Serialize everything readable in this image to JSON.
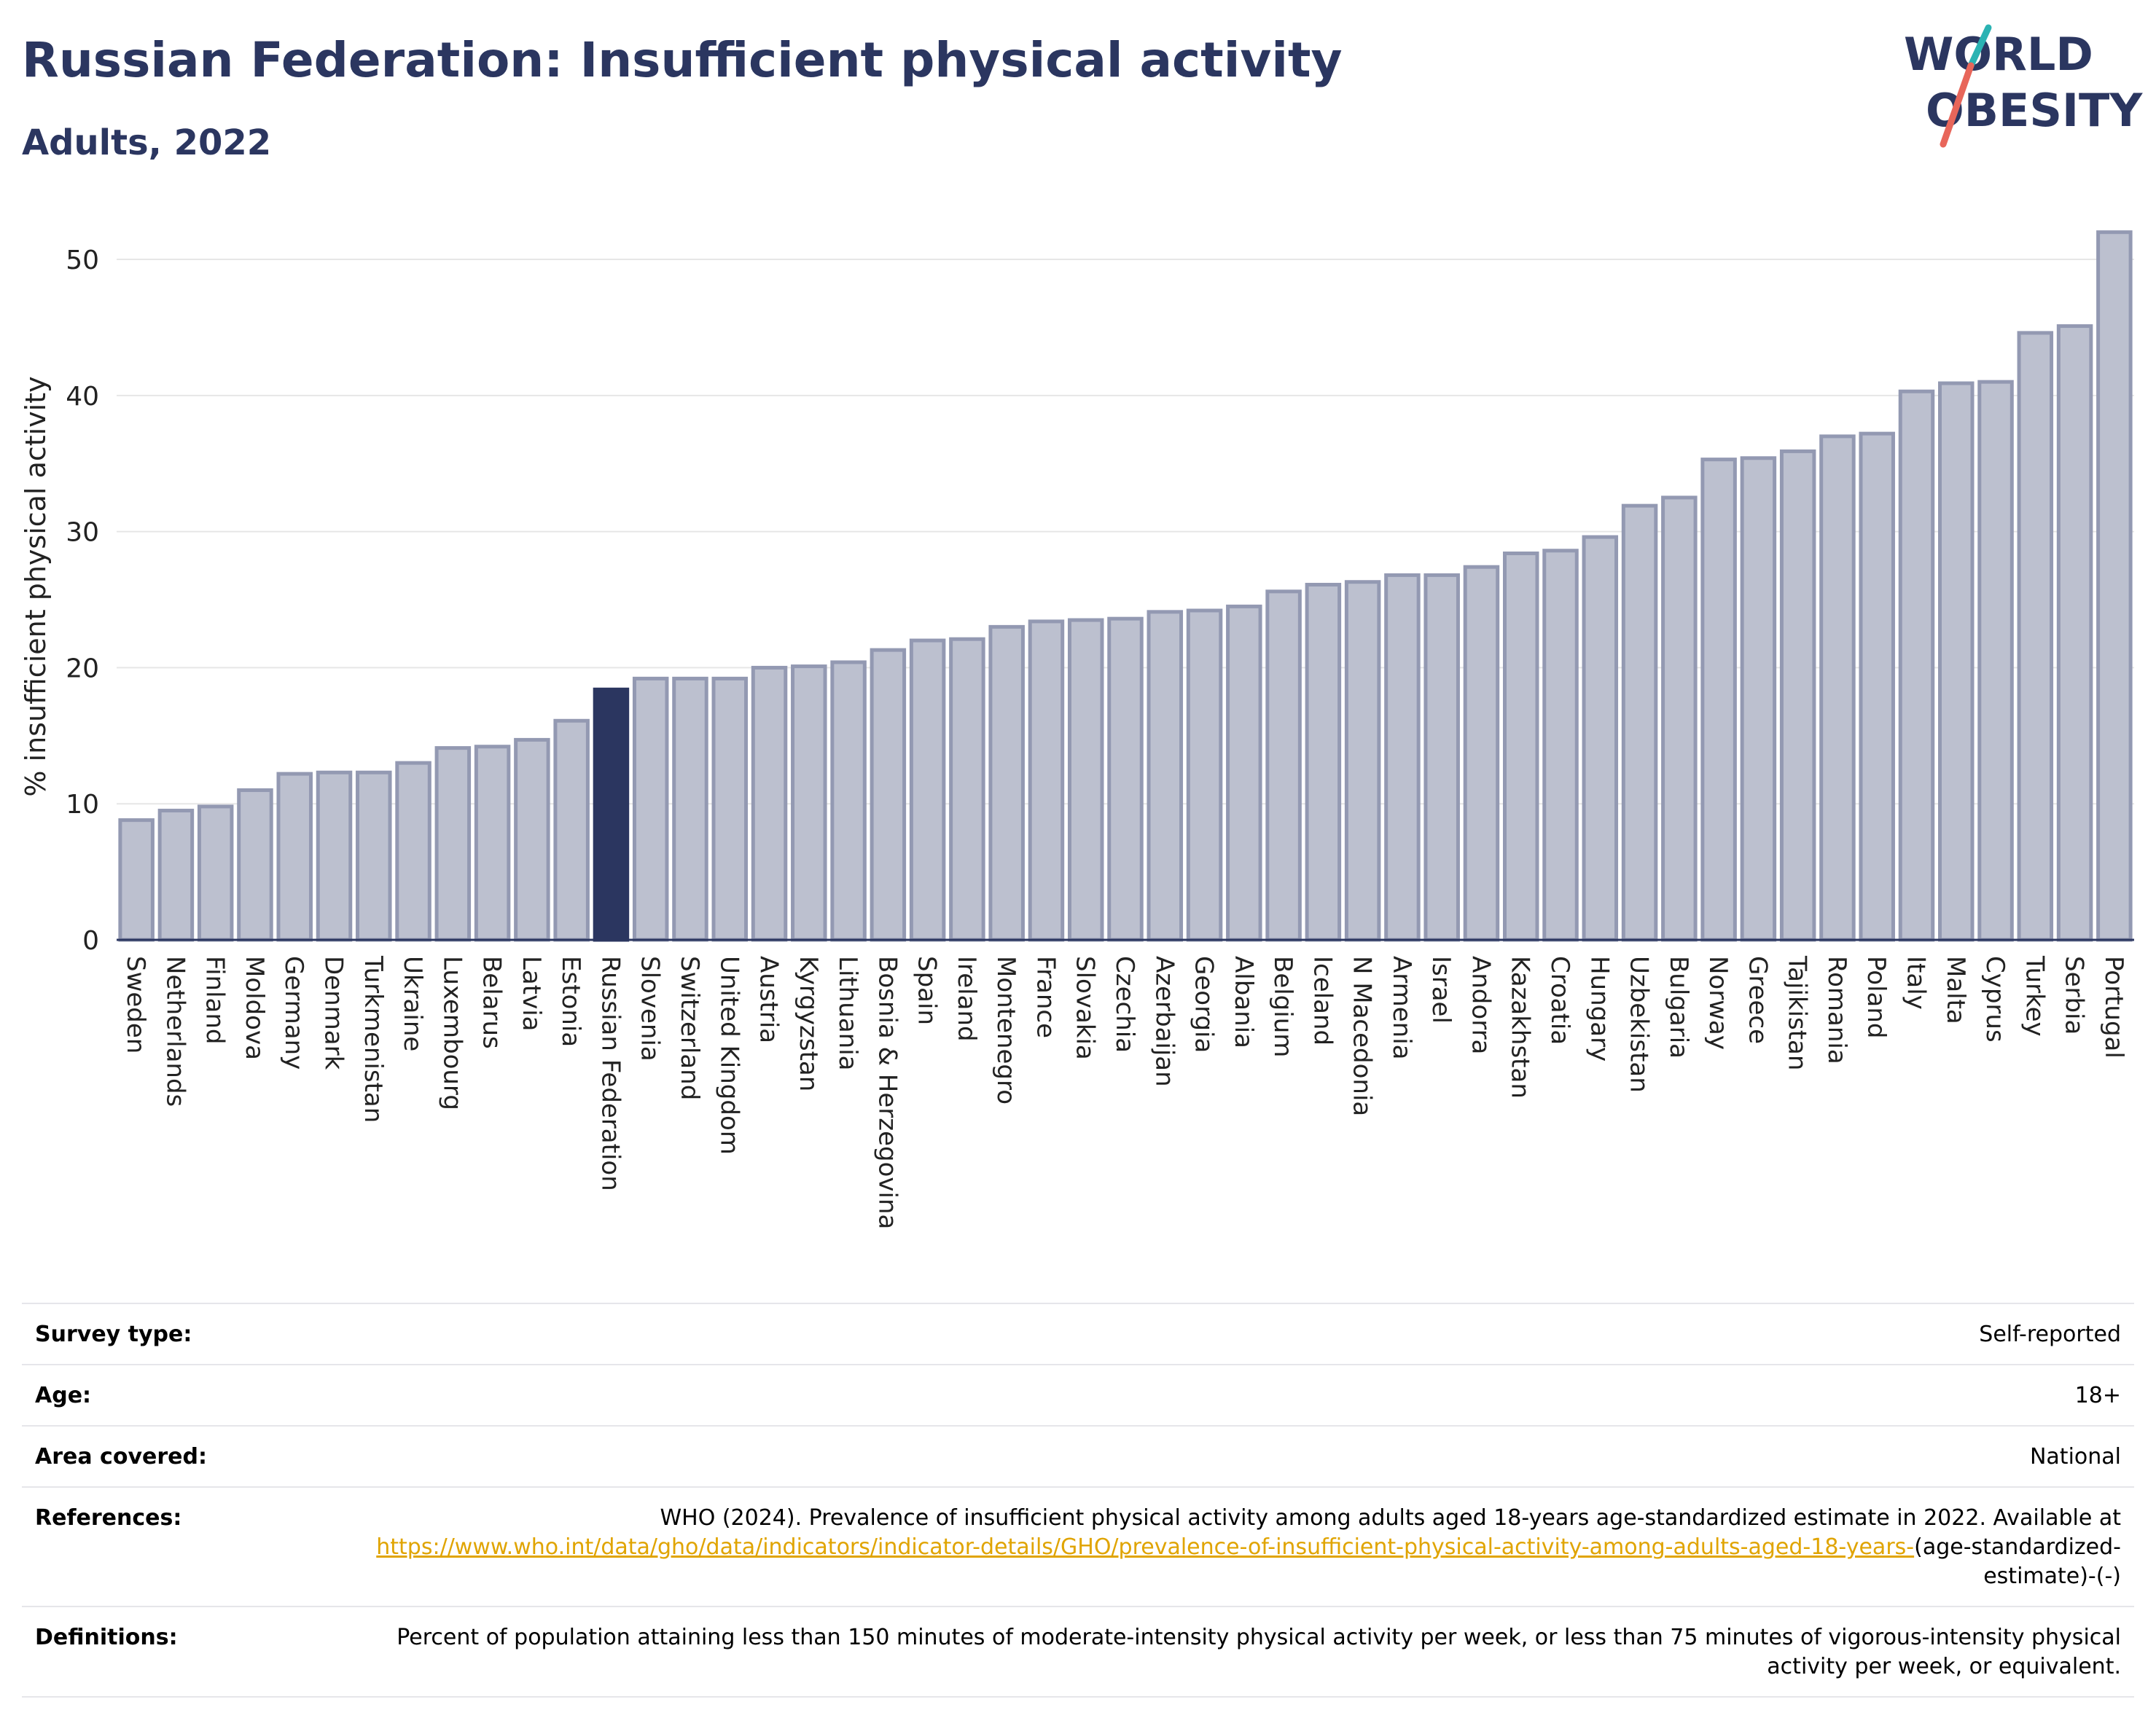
{
  "header": {
    "title": "Russian Federation: Insufficient physical activity",
    "subtitle": "Adults, 2022"
  },
  "logo": {
    "text_line1": "WORLD",
    "text_line2": "OBESITY",
    "colors": {
      "text": "#2b3660",
      "slash_top": "#2bb3b3",
      "slash_bottom": "#e8665a"
    }
  },
  "colors": {
    "bar": "#bcc0cf",
    "bar_outline": "#9399b2",
    "highlight": "#2b3660",
    "grid": "#e6e6e6",
    "title": "#2b3660",
    "link": "#e0a400"
  },
  "chart_data": {
    "type": "bar",
    "title": "Russian Federation: Insufficient physical activity",
    "subtitle": "Adults, 2022",
    "xlabel": "",
    "ylabel": "% insufficient physical activity",
    "ylim": [
      0,
      53
    ],
    "yticks": [
      0,
      10,
      20,
      30,
      40,
      50
    ],
    "grid": true,
    "highlight": "Russian Federation",
    "categories": [
      "Sweden",
      "Netherlands",
      "Finland",
      "Moldova",
      "Germany",
      "Denmark",
      "Turkmenistan",
      "Ukraine",
      "Luxembourg",
      "Belarus",
      "Latvia",
      "Estonia",
      "Russian Federation",
      "Slovenia",
      "Switzerland",
      "United Kingdom",
      "Austria",
      "Kyrgyzstan",
      "Lithuania",
      "Bosnia & Herzegovina",
      "Spain",
      "Ireland",
      "Montenegro",
      "France",
      "Slovakia",
      "Czechia",
      "Azerbaijan",
      "Georgia",
      "Albania",
      "Belgium",
      "Iceland",
      "N Macedonia",
      "Armenia",
      "Israel",
      "Andorra",
      "Kazakhstan",
      "Croatia",
      "Hungary",
      "Uzbekistan",
      "Bulgaria",
      "Norway",
      "Greece",
      "Tajikistan",
      "Romania",
      "Poland",
      "Italy",
      "Malta",
      "Cyprus",
      "Turkey",
      "Serbia",
      "Portugal"
    ],
    "values": [
      8.8,
      9.5,
      9.8,
      11.0,
      12.2,
      12.3,
      12.3,
      13.0,
      14.1,
      14.2,
      14.7,
      16.1,
      18.4,
      19.2,
      19.2,
      19.2,
      20.0,
      20.1,
      20.4,
      21.3,
      22.0,
      22.1,
      23.0,
      23.4,
      23.5,
      23.6,
      24.1,
      24.2,
      24.5,
      25.6,
      26.1,
      26.3,
      26.8,
      26.8,
      27.4,
      28.4,
      28.6,
      29.6,
      31.9,
      32.5,
      35.3,
      35.4,
      35.9,
      37.0,
      37.2,
      40.3,
      40.9,
      41.0,
      44.6,
      45.1,
      52.0
    ]
  },
  "meta": {
    "survey_type": {
      "label": "Survey type:",
      "value": "Self-reported"
    },
    "age": {
      "label": "Age:",
      "value": "18+"
    },
    "area": {
      "label": "Area covered:",
      "value": "National"
    },
    "references": {
      "label": "References:",
      "text": "WHO (2024). Prevalence of insufficient physical activity among adults aged 18-years age-standardized estimate in 2022. Available at",
      "link_text": "https://www.who.int/data/gho/data/indicators/indicator-details/GHO/prevalence-of-insufficient-physical-activity-among-adults-aged-18-years-",
      "suffix": "(age-standardized-estimate)-(-)"
    },
    "definitions": {
      "label": "Definitions:",
      "value": "Percent of population attaining less than 150 minutes of moderate-intensity physical activity per week, or less than 75 minutes of vigorous-intensity physical activity per week, or equivalent."
    }
  }
}
